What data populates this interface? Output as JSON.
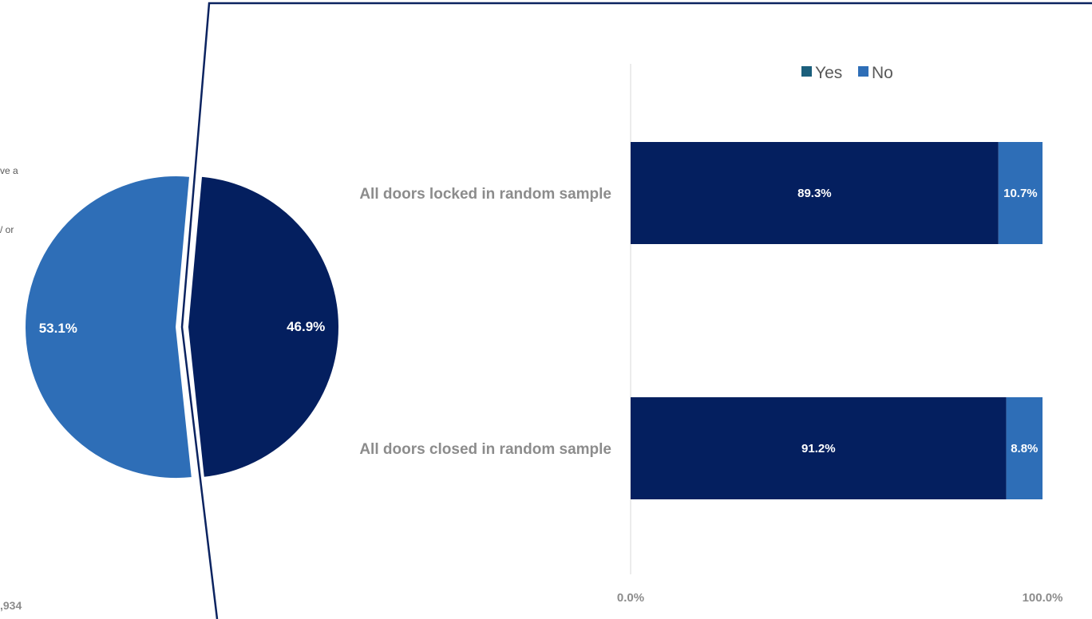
{
  "colors": {
    "yes": "#041f5f",
    "no": "#2e6eb7",
    "legend_yes": "#1b5f7c",
    "frame": "#0b2360",
    "axis": "#d9d9d9",
    "label_gray": "#8c8c8c"
  },
  "left_panel": {
    "text_fragments": [
      "ve a",
      "/ or"
    ],
    "bottom_fragment": ",934",
    "pie": {
      "slices": [
        {
          "name": "dark",
          "percent": 46.9,
          "label": "46.9%",
          "color": "#041f5f"
        },
        {
          "name": "light",
          "percent": 53.1,
          "label": "53.1%",
          "color": "#2e6eb7"
        }
      ]
    }
  },
  "chart_data": {
    "type": "bar",
    "orientation": "horizontal",
    "stacked": true,
    "categories": [
      "All doors locked in random sample",
      "All doors closed in random sample"
    ],
    "series": [
      {
        "name": "Yes",
        "values": [
          89.3,
          91.2
        ],
        "labels": [
          "89.3%",
          "91.2%"
        ]
      },
      {
        "name": "No",
        "values": [
          10.7,
          8.8
        ],
        "labels": [
          "10.7%",
          "8.8%"
        ]
      }
    ],
    "xlim": [
      0,
      100
    ],
    "x_ticks": [
      "0.0%",
      "100.0%"
    ],
    "legend": {
      "position": "top",
      "items": [
        "Yes",
        "No"
      ]
    },
    "grid": false
  }
}
